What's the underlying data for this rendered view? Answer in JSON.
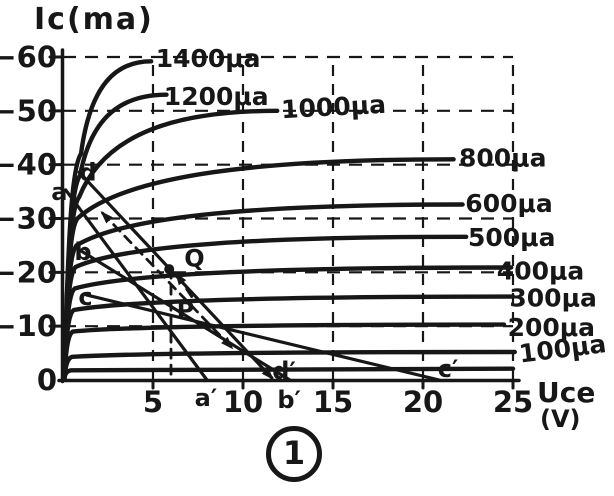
{
  "figure": {
    "y_axis_title": "Ic(ma)",
    "x_axis_title_line1": "Uce",
    "x_axis_title_line2": "(V)",
    "figure_number": "1",
    "ink_color": "#171717",
    "paper_color": "#ffffff"
  },
  "chart_data": {
    "type": "line",
    "xlabel": "Uce (V)",
    "ylabel": "Ic(ma)",
    "xlim": [
      0,
      25
    ],
    "ylim": [
      0,
      -60
    ],
    "grid": "dashed",
    "legend_position": "right-edge-curve-labels",
    "x_ticks": [
      {
        "label": "5",
        "v": 5
      },
      {
        "label": "10",
        "v": 10
      },
      {
        "label": "15",
        "v": 15
      },
      {
        "label": "20",
        "v": 20
      },
      {
        "label": "25",
        "v": 25
      }
    ],
    "y_ticks": [
      {
        "label": "−60",
        "ma": -60
      },
      {
        "label": "−50",
        "ma": -50
      },
      {
        "label": "−40",
        "ma": -40
      },
      {
        "label": "−30",
        "ma": -30
      },
      {
        "label": "−20",
        "ma": -20
      },
      {
        "label": "−10",
        "ma": -10
      },
      {
        "label": "0",
        "ma": 0
      }
    ],
    "curves": [
      {
        "ib_ua": 1400,
        "label": "1400μa",
        "knee_v": 1.0,
        "knee_ma": -42,
        "end_v": 4.9,
        "end_ma": -59.2,
        "label_v": 5.15,
        "label_ma": -59.8,
        "tilt": 0
      },
      {
        "ib_ua": 1200,
        "label": "1200μa",
        "knee_v": 0.95,
        "knee_ma": -38,
        "end_v": 5.75,
        "end_ma": -53.0,
        "label_v": 5.6,
        "label_ma": -52.8,
        "tilt": 0
      },
      {
        "ib_ua": 1000,
        "label": "1000μa",
        "knee_v": 0.9,
        "knee_ma": -34,
        "end_v": 11.9,
        "end_ma": -50.0,
        "label_v": 12.15,
        "label_ma": -50.3,
        "tilt": -3
      },
      {
        "ib_ua": 800,
        "label": "800μa",
        "knee_v": 0.8,
        "knee_ma": -30,
        "end_v": 21.7,
        "end_ma": -41.0,
        "label_v": 22.0,
        "label_ma": -41.3,
        "tilt": 0
      },
      {
        "ib_ua": 600,
        "label": "600μa",
        "knee_v": 0.75,
        "knee_ma": -25,
        "end_v": 22.2,
        "end_ma": -32.6,
        "label_v": 22.35,
        "label_ma": -32.9,
        "tilt": 0
      },
      {
        "ib_ua": 500,
        "label": "500μa",
        "knee_v": 0.7,
        "knee_ma": -21,
        "end_v": 22.4,
        "end_ma": -26.6,
        "label_v": 22.5,
        "label_ma": -26.6,
        "tilt": 0
      },
      {
        "ib_ua": 400,
        "label": "400μa",
        "knee_v": 0.65,
        "knee_ma": -17,
        "end_v": 24.9,
        "end_ma": -20.9,
        "label_v": 24.1,
        "label_ma": -20.3,
        "tilt": 0
      },
      {
        "ib_ua": 300,
        "label": "300μa",
        "knee_v": 0.6,
        "knee_ma": -13,
        "end_v": 25.0,
        "end_ma": -15.5,
        "label_v": 24.8,
        "label_ma": -15.3,
        "tilt": 0
      },
      {
        "ib_ua": 200,
        "label": "200μa",
        "knee_v": 0.55,
        "knee_ma": -9,
        "end_v": 24.5,
        "end_ma": -10.3,
        "label_v": 24.7,
        "label_ma": -9.8,
        "tilt": 0
      },
      {
        "ib_ua": 100,
        "label": "100μa",
        "knee_v": 0.5,
        "knee_ma": -4.3,
        "end_v": 25.1,
        "end_ma": -5.2,
        "label_v": 25.4,
        "label_ma": -4.9,
        "tilt": -7
      },
      {
        "ib_ua": 0,
        "label": "",
        "knee_v": 0.45,
        "knee_ma": -1.8,
        "end_v": 25.0,
        "end_ma": -2.1,
        "label_v": null,
        "label_ma": null,
        "tilt": 0
      }
    ],
    "load_lines": [
      {
        "name": "a-a′",
        "style": "solid",
        "from": {
          "v": 0.15,
          "ma": -35.3
        },
        "to": {
          "v": 8.0,
          "ma": 0
        },
        "arrow_end": false
      },
      {
        "name": "d-d′",
        "style": "solid",
        "from": {
          "v": 0.9,
          "ma": -38.6
        },
        "to": {
          "v": 11.6,
          "ma": -0.4
        },
        "arrow_end": true
      },
      {
        "name": "b-b′",
        "style": "solid",
        "from": {
          "v": 0.9,
          "ma": -24.2
        },
        "to": {
          "v": 12.6,
          "ma": 0
        },
        "arrow_end": false
      },
      {
        "name": "c-c′",
        "style": "solid",
        "from": {
          "v": 1.3,
          "ma": -15.8
        },
        "to": {
          "v": 20.9,
          "ma": 0
        },
        "arrow_end": false
      }
    ],
    "annotations": [
      {
        "name": "shift-line",
        "style": "dashed",
        "from": {
          "v": 2.2,
          "ma": -31
        },
        "to": {
          "v": 9.35,
          "ma": -6.1
        },
        "arrow_start": true,
        "arrow_end": true
      },
      {
        "name": "q-arrow",
        "style": "dashed",
        "from": {
          "v": 7.15,
          "ma": -15.5
        },
        "to": {
          "v": 6.33,
          "ma": -19.6
        },
        "arrow_start": false,
        "arrow_end": true
      },
      {
        "name": "q-vline",
        "style": "dashed",
        "from": {
          "v": 6.0,
          "ma": -20.6
        },
        "to": {
          "v": 6.0,
          "ma": 0
        },
        "arrow_start": false,
        "arrow_end": false
      }
    ],
    "operating_points": [
      {
        "name": "Q",
        "v": 5.9,
        "ma": -20.6,
        "dot": true
      },
      {
        "name": "P",
        "v": 5.65,
        "ma": -10.4,
        "dot": false
      }
    ],
    "point_labels": [
      {
        "text": "a",
        "v": -0.2,
        "ma": -34.9
      },
      {
        "text": "d",
        "v": 1.39,
        "ma": -38.5
      },
      {
        "text": "b",
        "v": 1.11,
        "ma": -23.8
      },
      {
        "text": "c",
        "v": 1.25,
        "ma": -15.4
      },
      {
        "text": "Q",
        "v": 7.3,
        "ma": -22.6
      },
      {
        "text": "P",
        "v": 6.8,
        "ma": -12.9
      },
      {
        "text": "a′",
        "v": 7.94,
        "ma": 3.34
      },
      {
        "text": "b′",
        "v": 12.56,
        "ma": 3.72
      },
      {
        "text": "c′",
        "v": 21.39,
        "ma": -2.04
      },
      {
        "text": "d′",
        "v": 12.28,
        "ma": -1.67
      }
    ]
  }
}
